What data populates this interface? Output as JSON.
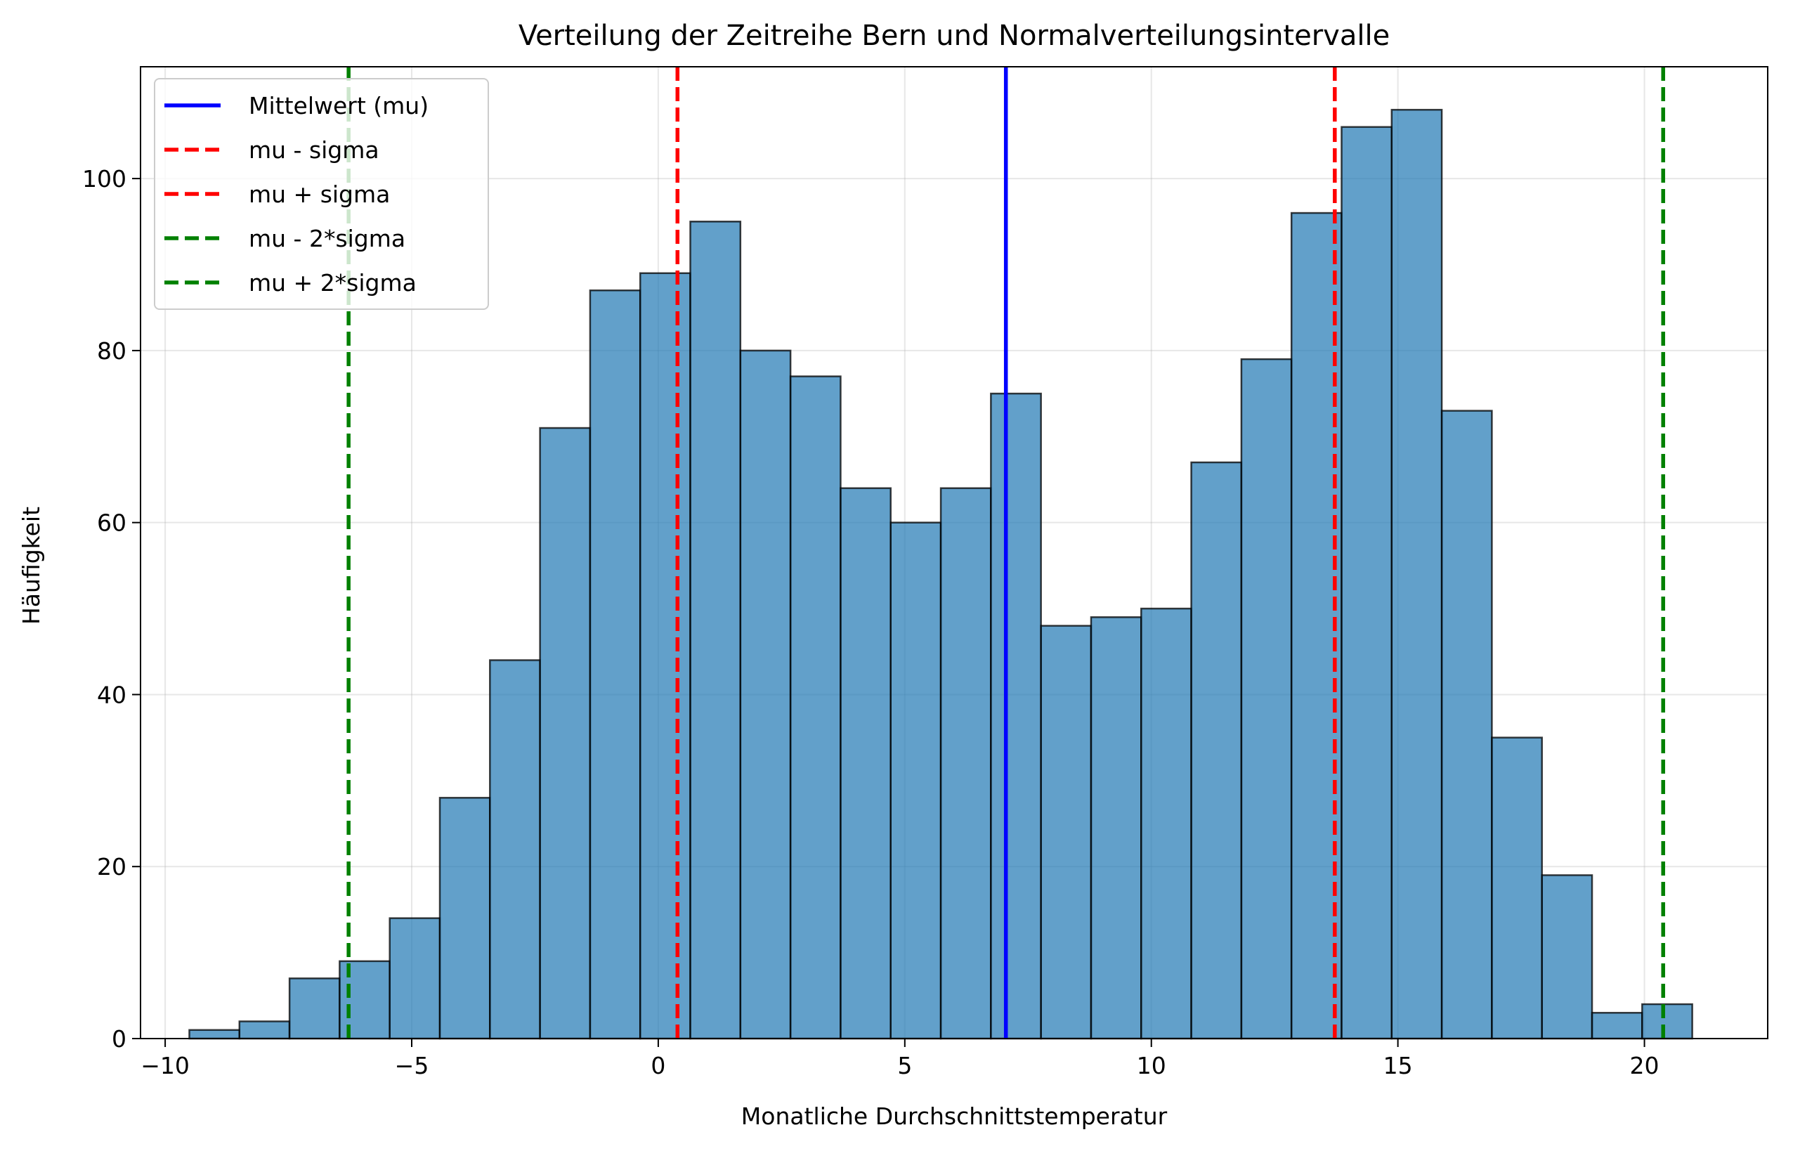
{
  "chart_data": {
    "type": "bar",
    "title": "Verteilung der Zeitreihe Bern und Normalverteilungsintervalle",
    "xlabel": "Monatliche Durchschnittstemperatur",
    "ylabel": "Häufigkeit",
    "xlim": [
      -10.5,
      22.5
    ],
    "ylim": [
      0,
      113
    ],
    "xticks": [
      -10,
      -5,
      0,
      5,
      10,
      15,
      20
    ],
    "xtick_labels": [
      "−10",
      "−5",
      "0",
      "5",
      "10",
      "15",
      "20"
    ],
    "yticks": [
      0,
      20,
      40,
      60,
      80,
      100
    ],
    "ytick_labels": [
      "0",
      "20",
      "40",
      "60",
      "80",
      "100"
    ],
    "grid": true,
    "legend_position": "top-left",
    "bar_color": "#1f77b4",
    "bar_edge_color": "#000000",
    "bin_start": -9.51,
    "bin_width": 1.016,
    "counts": [
      1,
      2,
      7,
      9,
      14,
      28,
      44,
      71,
      87,
      89,
      95,
      80,
      77,
      64,
      60,
      64,
      75,
      48,
      49,
      50,
      67,
      79,
      96,
      106,
      108,
      73,
      35,
      19,
      3,
      4
    ],
    "lines": [
      {
        "name": "Mittelwert (mu)",
        "x": 7.05,
        "color": "#0000ff",
        "style": "solid"
      },
      {
        "name": "mu - sigma",
        "x": 0.39,
        "color": "#ff0000",
        "style": "dashed"
      },
      {
        "name": "mu + sigma",
        "x": 13.72,
        "color": "#ff0000",
        "style": "dashed"
      },
      {
        "name": "mu - 2*sigma",
        "x": -6.28,
        "color": "#008000",
        "style": "dashed"
      },
      {
        "name": "mu + 2*sigma",
        "x": 20.38,
        "color": "#008000",
        "style": "dashed"
      }
    ]
  }
}
